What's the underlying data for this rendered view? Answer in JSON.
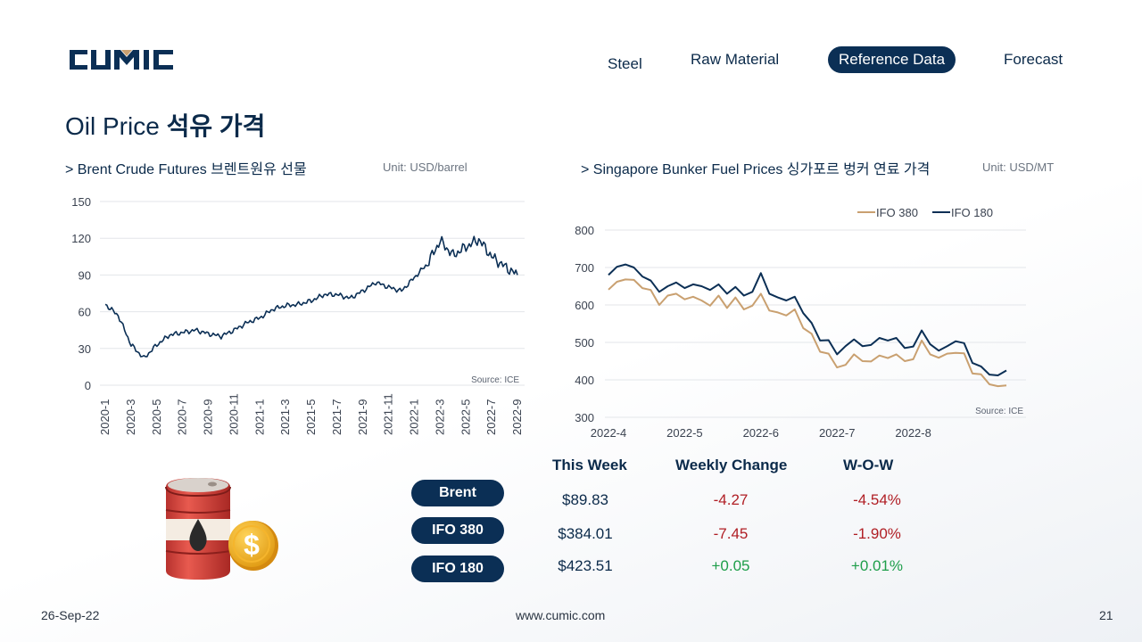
{
  "header": {
    "logo_text": "CUMIC",
    "nav": [
      "Steel",
      "Raw Material",
      "Reference Data",
      "Forecast"
    ],
    "nav_active": "Reference Data"
  },
  "title": {
    "en": "Oil Price",
    "kr": "석유 가격"
  },
  "left_section": {
    "heading": "> Brent Crude Futures 브렌트원유 선물",
    "unit": "Unit: USD/barrel"
  },
  "right_section": {
    "heading": "> Singapore Bunker Fuel Prices 싱가포르 벙커 연료 가격",
    "unit": "Unit: USD/MT"
  },
  "chart_data": [
    {
      "type": "line",
      "title": "Brent Crude Futures",
      "ylim": [
        0,
        150
      ],
      "yticks": [
        0,
        30,
        60,
        90,
        120,
        150
      ],
      "xticks": [
        "2020-1",
        "2020-3",
        "2020-5",
        "2020-7",
        "2020-9",
        "2020-11",
        "2021-1",
        "2021-3",
        "2021-5",
        "2021-7",
        "2021-9",
        "2021-11",
        "2022-1",
        "2022-3",
        "2022-5",
        "2022-7",
        "2022-9"
      ],
      "grid": true,
      "source": "Source: ICE",
      "color": "#0b2f55",
      "series": [
        {
          "x": [
            "2020-01",
            "2020-02",
            "2020-03",
            "2020-04",
            "2020-05",
            "2020-06",
            "2020-07",
            "2020-08",
            "2020-09",
            "2020-10",
            "2020-11",
            "2020-12",
            "2021-01",
            "2021-02",
            "2021-03",
            "2021-04",
            "2021-05",
            "2021-06",
            "2021-07",
            "2021-08",
            "2021-09",
            "2021-10",
            "2021-11",
            "2021-12",
            "2022-01",
            "2022-02",
            "2022-03",
            "2022-04",
            "2022-05",
            "2022-06",
            "2022-07",
            "2022-08",
            "2022-09"
          ],
          "values": [
            66,
            57,
            33,
            22,
            33,
            41,
            43,
            45,
            42,
            40,
            45,
            51,
            55,
            62,
            65,
            66,
            69,
            74,
            74,
            71,
            77,
            84,
            80,
            77,
            88,
            99,
            118,
            106,
            113,
            119,
            105,
            97,
            90
          ]
        }
      ]
    },
    {
      "type": "line",
      "title": "Singapore Bunker Fuel Prices",
      "ylim": [
        300,
        800
      ],
      "yticks": [
        300,
        400,
        500,
        600,
        700,
        800
      ],
      "xticks": [
        "2022-4",
        "2022-5",
        "2022-6",
        "2022-7",
        "2022-8"
      ],
      "legend": "top-right",
      "grid": true,
      "source": "Source: ICE",
      "series": [
        {
          "name": "IFO 380",
          "color": "#c9a070",
          "x": [
            0,
            0.5,
            1,
            1.5,
            2,
            2.5,
            3,
            3.5,
            4,
            4.5,
            5,
            5.5,
            6,
            6.5,
            7,
            7.5,
            8,
            8.5,
            9,
            9.5,
            10,
            10.5,
            11,
            11.5,
            12,
            12.5,
            13,
            13.5,
            14,
            14.5,
            15,
            15.5,
            16,
            16.5,
            17,
            17.5,
            18,
            18.5,
            19,
            19.5,
            20,
            20.5,
            21,
            21.5,
            22,
            22.5,
            23,
            23.5
          ],
          "values": [
            641,
            662,
            668,
            667,
            645,
            640,
            600,
            625,
            630,
            615,
            622,
            612,
            598,
            625,
            592,
            620,
            588,
            598,
            630,
            585,
            580,
            572,
            588,
            538,
            523,
            475,
            470,
            433,
            440,
            468,
            450,
            449,
            465,
            458,
            468,
            450,
            455,
            505,
            468,
            459,
            470,
            472,
            471,
            417,
            415,
            388,
            383,
            385
          ]
        },
        {
          "name": "IFO 180",
          "color": "#0b2f55",
          "x": [
            0,
            0.5,
            1,
            1.5,
            2,
            2.5,
            3,
            3.5,
            4,
            4.5,
            5,
            5.5,
            6,
            6.5,
            7,
            7.5,
            8,
            8.5,
            9,
            9.5,
            10,
            10.5,
            11,
            11.5,
            12,
            12.5,
            13,
            13.5,
            14,
            14.5,
            15,
            15.5,
            16,
            16.5,
            17,
            17.5,
            18,
            18.5,
            19,
            19.5,
            20,
            20.5,
            21,
            21.5,
            22,
            22.5,
            23,
            23.5
          ],
          "values": [
            680,
            702,
            708,
            700,
            676,
            665,
            635,
            650,
            660,
            645,
            655,
            650,
            640,
            655,
            630,
            648,
            625,
            635,
            685,
            630,
            620,
            612,
            622,
            578,
            552,
            505,
            506,
            468,
            490,
            508,
            490,
            493,
            512,
            505,
            512,
            485,
            489,
            532,
            495,
            478,
            490,
            503,
            498,
            445,
            436,
            414,
            412,
            425
          ]
        }
      ]
    }
  ],
  "table": {
    "headers": [
      "This Week",
      "Weekly Change",
      "W-O-W"
    ],
    "rows": [
      {
        "label": "Brent",
        "this_week": "$89.83",
        "change": "-4.27",
        "wow": "-4.54%",
        "direction": "down"
      },
      {
        "label": "IFO 380",
        "this_week": "$384.01",
        "change": "-7.45",
        "wow": "-1.90%",
        "direction": "down"
      },
      {
        "label": "IFO 180",
        "this_week": "$423.51",
        "change": "+0.05",
        "wow": "+0.01%",
        "direction": "up"
      }
    ]
  },
  "illustration": {
    "icon": "oil-barrel-dollar-icon"
  },
  "footer": {
    "date": "26-Sep-22",
    "website": "www.cumic.com",
    "page": "21"
  }
}
